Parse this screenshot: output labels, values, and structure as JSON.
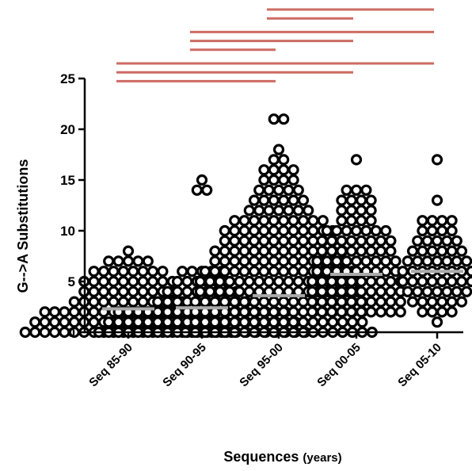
{
  "chart_data": {
    "type": "scatter",
    "subtype": "column-scatter-with-mean",
    "title": "",
    "xlabel": "Sequences",
    "xlabel_unit": "(years)",
    "ylabel": "G-->A Substitutions",
    "ylim": [
      0,
      25
    ],
    "yticks": [
      0,
      5,
      10,
      15,
      20,
      25
    ],
    "grid": false,
    "marker_color": "#000000",
    "mean_color": "#aaaaaa",
    "comparison_color": "#cd6b62",
    "categories": [
      "Seq 85-90",
      "Seq 90-95",
      "Seq 95-00",
      "Seq 00-05",
      "Seq 05-10"
    ],
    "means": [
      2.3,
      2.4,
      3.6,
      5.7,
      6.0
    ],
    "groups": [
      {
        "counts": [
          [
            0,
            22
          ],
          [
            1,
            20
          ],
          [
            2,
            18
          ],
          [
            3,
            12
          ],
          [
            4,
            10
          ],
          [
            5,
            10
          ],
          [
            6,
            8
          ],
          [
            7,
            5
          ],
          [
            8,
            1
          ]
        ]
      },
      {
        "counts": [
          [
            0,
            22
          ],
          [
            1,
            20
          ],
          [
            2,
            18
          ],
          [
            3,
            10
          ],
          [
            4,
            8
          ],
          [
            5,
            6
          ],
          [
            6,
            5
          ],
          [
            14,
            2
          ],
          [
            15,
            1
          ]
        ]
      },
      {
        "counts": [
          [
            0,
            20
          ],
          [
            1,
            18
          ],
          [
            2,
            18
          ],
          [
            3,
            18
          ],
          [
            4,
            17
          ],
          [
            5,
            17
          ],
          [
            6,
            16
          ],
          [
            7,
            14
          ],
          [
            8,
            14
          ],
          [
            9,
            12
          ],
          [
            10,
            12
          ],
          [
            11,
            10
          ],
          [
            12,
            7
          ],
          [
            13,
            6
          ],
          [
            14,
            5
          ],
          [
            15,
            4
          ],
          [
            16,
            4
          ],
          [
            17,
            2
          ],
          [
            18,
            1
          ],
          [
            21,
            2
          ]
        ]
      },
      {
        "counts": [
          [
            2,
            10
          ],
          [
            3,
            10
          ],
          [
            4,
            10
          ],
          [
            5,
            10
          ],
          [
            6,
            9
          ],
          [
            7,
            9
          ],
          [
            8,
            8
          ],
          [
            9,
            8
          ],
          [
            10,
            7
          ],
          [
            11,
            4
          ],
          [
            12,
            4
          ],
          [
            13,
            4
          ],
          [
            14,
            3
          ],
          [
            17,
            1
          ]
        ]
      },
      {
        "counts": [
          [
            1,
            1
          ],
          [
            2,
            4
          ],
          [
            3,
            6
          ],
          [
            4,
            7
          ],
          [
            5,
            8
          ],
          [
            6,
            8
          ],
          [
            7,
            7
          ],
          [
            8,
            6
          ],
          [
            9,
            5
          ],
          [
            10,
            4
          ],
          [
            11,
            4
          ],
          [
            13,
            1
          ],
          [
            17,
            1
          ]
        ]
      }
    ],
    "comparisons": [
      [
        2,
        4
      ],
      [
        2,
        3
      ],
      [
        1,
        4
      ],
      [
        1,
        3
      ],
      [
        1,
        2
      ],
      [
        0,
        4
      ],
      [
        0,
        3
      ],
      [
        0,
        2
      ]
    ]
  }
}
